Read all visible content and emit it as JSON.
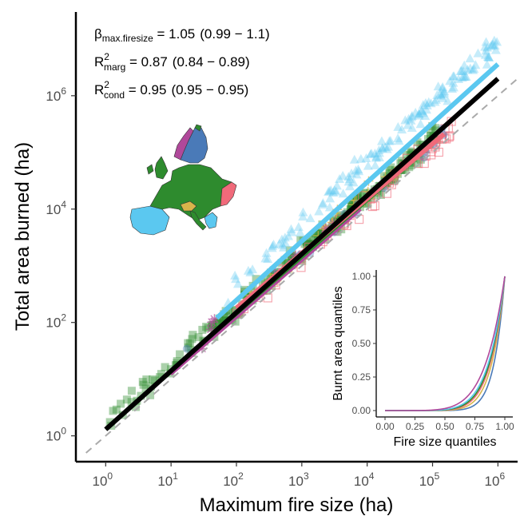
{
  "chart_data": [
    {
      "type": "scatter",
      "log_x": true,
      "log_y": true,
      "xlabel": "Maximum fire size (ha)",
      "ylabel": "Total area burned (ha)",
      "xlim": [
        0.35,
        2000000
      ],
      "ylim": [
        0.35,
        30000000
      ],
      "x_ticks": [
        {
          "value": 1,
          "base": "10",
          "exp": "0"
        },
        {
          "value": 10,
          "base": "10",
          "exp": "1"
        },
        {
          "value": 100,
          "base": "10",
          "exp": "2"
        },
        {
          "value": 1000,
          "base": "10",
          "exp": "3"
        },
        {
          "value": 10000,
          "base": "10",
          "exp": "4"
        },
        {
          "value": 100000,
          "base": "10",
          "exp": "5"
        },
        {
          "value": 1000000,
          "base": "10",
          "exp": "6"
        }
      ],
      "y_ticks": [
        {
          "value": 1,
          "base": "10",
          "exp": "0"
        },
        {
          "value": 100,
          "base": "10",
          "exp": "2"
        },
        {
          "value": 10000,
          "base": "10",
          "exp": "4"
        },
        {
          "value": 1000000,
          "base": "10",
          "exp": "6"
        }
      ],
      "grid": false,
      "stats": [
        {
          "symbol": "β",
          "sub": "max.firesize",
          "sup": "",
          "eq": " = 1.05",
          "ci": "(0.99 − 1.1)"
        },
        {
          "symbol": "R",
          "sub": "marg",
          "sup": "2",
          "eq": " = 0.87",
          "ci": "(0.84 − 0.89)"
        },
        {
          "symbol": "R",
          "sub": "cond",
          "sup": "2",
          "eq": " = 0.95",
          "ci": "(0.95 − 0.95)"
        }
      ],
      "series": [
        {
          "color": "#2e8b2e",
          "marker": "square",
          "x_range": [
            1,
            120000
          ],
          "slope": 1.0,
          "intercept_log10": 0.2,
          "n": 260
        },
        {
          "color": "#5bc8f0",
          "marker": "triangle",
          "x_range": [
            60,
            1000000
          ],
          "slope": 1.07,
          "intercept_log10": 0.5,
          "n": 150
        },
        {
          "color": "#f06a7a",
          "marker": "square-open",
          "x_range": [
            100,
            200000
          ],
          "slope": 1.0,
          "intercept_log10": 0.05,
          "n": 60
        },
        {
          "color": "#d9b44a",
          "marker": "plus",
          "x_range": [
            30,
            30000
          ],
          "slope": 1.0,
          "intercept_log10": 0.2,
          "n": 30
        },
        {
          "color": "#b0489a",
          "marker": "asterisk",
          "x_range": [
            10,
            20000
          ],
          "slope": 1.0,
          "intercept_log10": 0.15,
          "n": 12
        },
        {
          "color": "#4a7ab8",
          "marker": "circle",
          "x_range": [
            10,
            200000
          ],
          "slope": 1.0,
          "intercept_log10": 0.1,
          "n": 15
        }
      ],
      "fit_lines": [
        {
          "color": "#000000",
          "x": [
            1,
            1000000
          ],
          "y": [
            1.3,
            2000000
          ],
          "dashed": false,
          "width": 6
        },
        {
          "color": "#5bc8f0",
          "x": [
            50,
            1000000
          ],
          "y": [
            120,
            3600000
          ],
          "dashed": false,
          "width": 6
        },
        {
          "color": "#f06a7a",
          "x": [
            100,
            150000
          ],
          "y": [
            180,
            210000
          ],
          "dashed": false,
          "width": 6
        },
        {
          "color": "#2e8b2e",
          "x": [
            1,
            100000
          ],
          "y": [
            1.3,
            140000
          ],
          "dashed": false,
          "width": 3
        },
        {
          "color": "#b0489a",
          "x": [
            10,
            8000
          ],
          "y": [
            12,
            9800
          ],
          "dashed": false,
          "width": 3
        },
        {
          "color": "#aaaaaa",
          "x": [
            0.5,
            2000000
          ],
          "y": [
            0.5,
            2000000
          ],
          "dashed": true,
          "width": 2
        }
      ]
    },
    {
      "type": "line",
      "xlabel": "Fire size quantiles",
      "ylabel": "Burnt area quantiles",
      "xlim": [
        0,
        1
      ],
      "ylim": [
        0,
        1
      ],
      "x_ticks": [
        "0.00",
        "0.25",
        "0.50",
        "0.75",
        "1.00"
      ],
      "y_ticks": [
        "0.00",
        "0.25",
        "0.50",
        "0.75",
        "1.00"
      ],
      "series": [
        {
          "color": "#4a7ab8",
          "exponent": 11
        },
        {
          "color": "#d9b44a",
          "exponent": 9
        },
        {
          "color": "#f06a7a",
          "exponent": 8
        },
        {
          "color": "#2e8b2e",
          "exponent": 7.5
        },
        {
          "color": "#5bc8f0",
          "exponent": 7
        },
        {
          "color": "#b0489a",
          "exponent": 6
        }
      ]
    }
  ],
  "map": {
    "regions": [
      {
        "name": "",
        "color": "#4a7ab8"
      },
      {
        "name": "",
        "color": "#b0489a"
      },
      {
        "name": "",
        "color": "#2e8b2e"
      },
      {
        "name": "",
        "color": "#f06a7a"
      },
      {
        "name": "",
        "color": "#d9b44a"
      },
      {
        "name": "",
        "color": "#5bc8f0"
      }
    ]
  }
}
